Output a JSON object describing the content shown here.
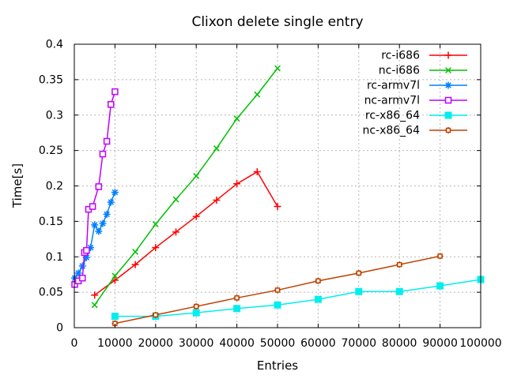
{
  "window": {
    "background": "#ffffff",
    "text_color": "#000000"
  },
  "chart_data": {
    "type": "line",
    "title": "Clixon delete single entry",
    "xlabel": "Entries",
    "ylabel": "Time[s]",
    "xlim": [
      0,
      100000
    ],
    "ylim": [
      0,
      0.4
    ],
    "grid": true,
    "grid_color": "#b8b8b8",
    "axis_color": "#000000",
    "legend_position": "top-right-inside",
    "xticks": {
      "values": [
        0,
        10000,
        20000,
        30000,
        40000,
        50000,
        60000,
        70000,
        80000,
        90000,
        100000
      ],
      "labels": [
        "0",
        "10000",
        "20000",
        "30000",
        "40000",
        "50000",
        "60000",
        "70000",
        "80000",
        "90000",
        "100000"
      ]
    },
    "yticks": {
      "values": [
        0,
        0.05,
        0.1,
        0.15,
        0.2,
        0.25,
        0.3,
        0.35,
        0.4
      ],
      "labels": [
        "0",
        "0.05",
        "0.1",
        "0.15",
        "0.2",
        "0.25",
        "0.3",
        "0.35",
        "0.4"
      ]
    },
    "series": [
      {
        "name": "rc-i686",
        "color": "#ff0000",
        "marker": "plus",
        "x": [
          5000,
          10000,
          15000,
          20000,
          25000,
          30000,
          35000,
          40000,
          45000,
          50000
        ],
        "y": [
          0.046,
          0.067,
          0.089,
          0.113,
          0.135,
          0.157,
          0.18,
          0.203,
          0.22,
          0.171
        ]
      },
      {
        "name": "nc-i686",
        "color": "#00c000",
        "marker": "cross",
        "x": [
          5000,
          10000,
          15000,
          20000,
          25000,
          30000,
          35000,
          40000,
          45000,
          50000
        ],
        "y": [
          0.032,
          0.073,
          0.107,
          0.146,
          0.181,
          0.214,
          0.253,
          0.295,
          0.329,
          0.366
        ]
      },
      {
        "name": "rc-armv7l",
        "color": "#0080ff",
        "marker": "star",
        "x": [
          100,
          1000,
          2000,
          3000,
          4000,
          5000,
          6000,
          7000,
          8000,
          9000,
          10000
        ],
        "y": [
          0.07,
          0.077,
          0.087,
          0.099,
          0.113,
          0.145,
          0.136,
          0.147,
          0.16,
          0.177,
          0.191
        ]
      },
      {
        "name": "nc-armv7l",
        "color": "#c000ff",
        "marker": "open-square",
        "x": [
          100,
          1000,
          2000,
          2500,
          3000,
          3500,
          4500,
          6000,
          7000,
          8000,
          9000,
          10000
        ],
        "y": [
          0.061,
          0.066,
          0.07,
          0.106,
          0.109,
          0.167,
          0.171,
          0.199,
          0.245,
          0.263,
          0.315,
          0.333
        ]
      },
      {
        "name": "rc-x86_64",
        "color": "#00eeee",
        "marker": "filled-square",
        "x": [
          10000,
          20000,
          30000,
          40000,
          50000,
          60000,
          70000,
          80000,
          90000,
          100000
        ],
        "y": [
          0.016,
          0.016,
          0.021,
          0.027,
          0.032,
          0.04,
          0.051,
          0.051,
          0.059,
          0.068
        ]
      },
      {
        "name": "nc-x86_64",
        "color": "#c04000",
        "marker": "boxed-plus",
        "x": [
          10000,
          20000,
          30000,
          40000,
          50000,
          60000,
          70000,
          80000,
          90000
        ],
        "y": [
          0.006,
          0.018,
          0.03,
          0.042,
          0.053,
          0.066,
          0.077,
          0.089,
          0.101
        ]
      }
    ]
  }
}
